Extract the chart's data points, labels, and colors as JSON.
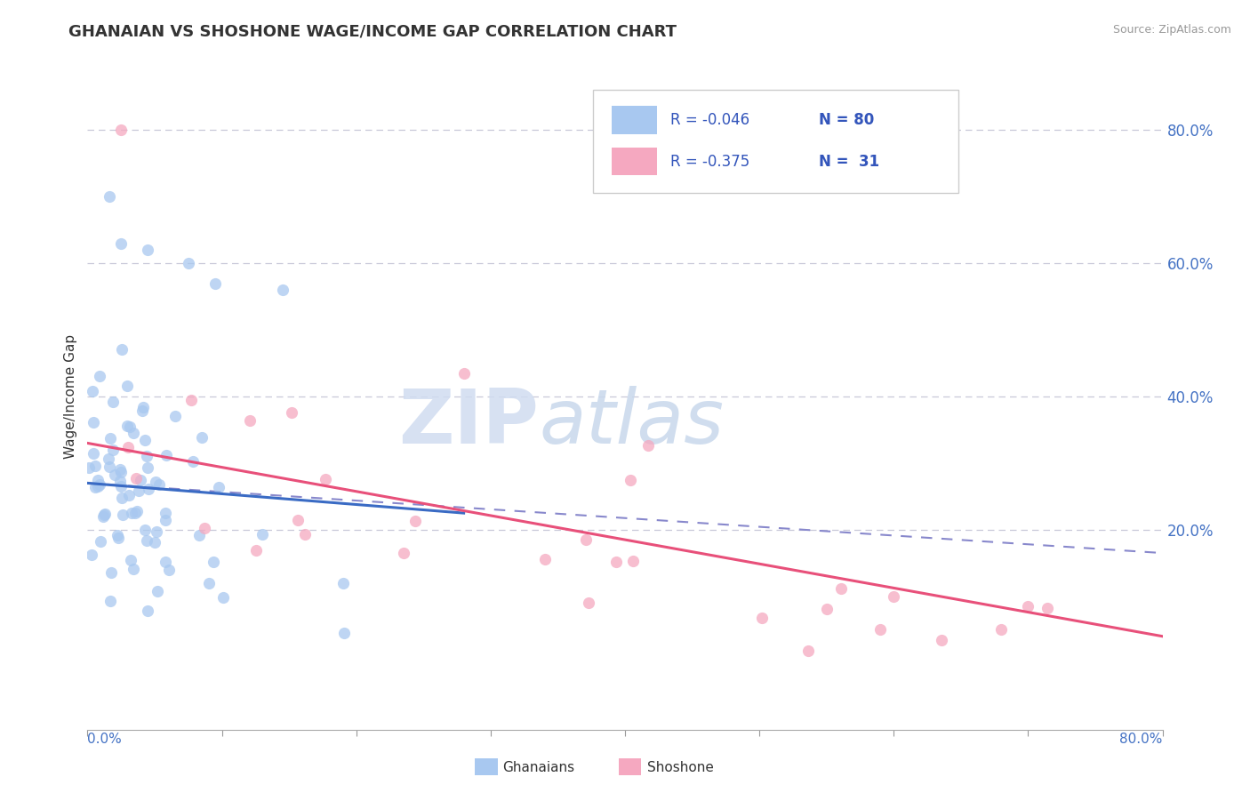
{
  "title": "GHANAIAN VS SHOSHONE WAGE/INCOME GAP CORRELATION CHART",
  "source": "Source: ZipAtlas.com",
  "ylabel": "Wage/Income Gap",
  "right_yticks": [
    "80.0%",
    "60.0%",
    "40.0%",
    "20.0%"
  ],
  "right_ytick_vals": [
    0.8,
    0.6,
    0.4,
    0.2
  ],
  "legend_ghanaian_R": "R = -0.046",
  "legend_ghanaian_N": "N = 80",
  "legend_shoshone_R": "R = -0.375",
  "legend_shoshone_N": "N =  31",
  "ghanaian_color": "#A8C8F0",
  "shoshone_color": "#F5A8C0",
  "ghanaian_line_color": "#3A6BC4",
  "shoshone_line_color": "#E8507A",
  "dashed_line_color": "#8888CC",
  "background_color": "#FFFFFF",
  "watermark_zip": "ZIP",
  "watermark_atlas": "atlas",
  "xmin": 0.0,
  "xmax": 0.8,
  "ymin": -0.1,
  "ymax": 0.9,
  "ghanaian_seed": 123,
  "shoshone_seed": 456,
  "ghanaian_line_x0": 0.0,
  "ghanaian_line_y0": 0.27,
  "ghanaian_line_x1": 0.28,
  "ghanaian_line_y1": 0.225,
  "shoshone_line_x0": 0.0,
  "shoshone_line_y0": 0.33,
  "shoshone_line_x1": 0.8,
  "shoshone_line_y1": 0.04,
  "dashed_line_x0": 0.0,
  "dashed_line_y0": 0.27,
  "dashed_line_x1": 0.8,
  "dashed_line_y1": 0.165
}
